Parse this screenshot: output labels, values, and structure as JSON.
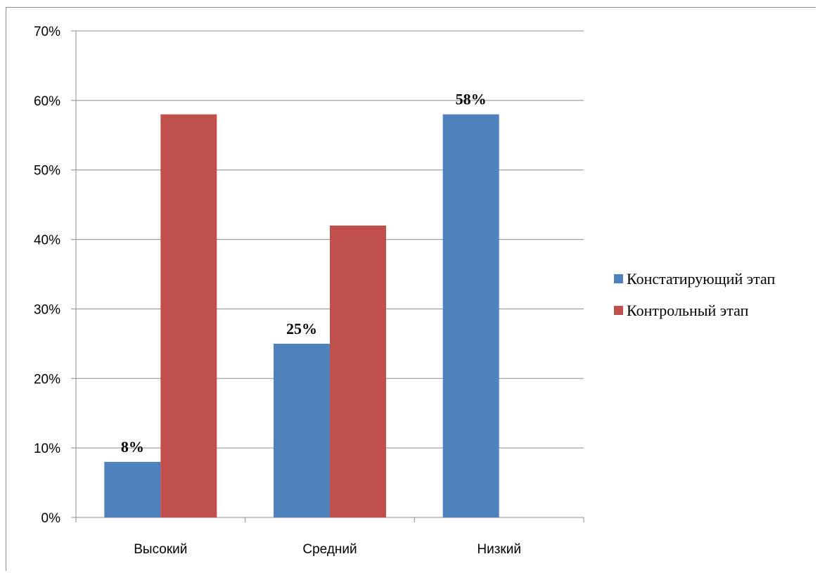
{
  "chart_data": {
    "type": "bar",
    "categories": [
      "Высокий",
      "Средний",
      "Низкий"
    ],
    "series": [
      {
        "name": "Констатирующий этап",
        "color": "#4f81bd",
        "values": [
          8,
          25,
          58
        ],
        "labels": [
          "8%",
          "25%",
          "58%"
        ]
      },
      {
        "name": "Контрольный этап",
        "color": "#c0504d",
        "values": [
          58,
          42,
          0
        ],
        "labels": [
          "",
          "",
          ""
        ]
      }
    ],
    "ylim": [
      0,
      70
    ],
    "yticks": [
      "0%",
      "10%",
      "20%",
      "30%",
      "40%",
      "50%",
      "60%",
      "70%"
    ],
    "grid": true,
    "legend_position": "right"
  }
}
